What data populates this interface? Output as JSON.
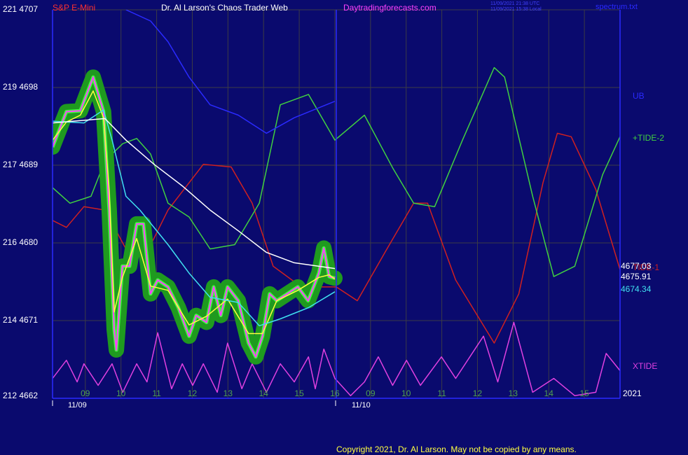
{
  "chart_data": {
    "type": "line",
    "title": "Dr. Al Larson's Chaos Trader Web",
    "instrument": "S&P E-Mini",
    "site": "Daytradingforecasts.com",
    "timestamps": [
      "11/09/2021 21:38 UTC",
      "11/09/2021 15:38 Local"
    ],
    "file": "spectrum.txt",
    "year": "2021",
    "dates": [
      "11/09",
      "11/10"
    ],
    "copyright": "Copyright 2021, Dr. Al Larson. May not be copied by any means.",
    "xlim": [
      8.08,
      24
    ],
    "ylim": [
      4662,
      4707
    ],
    "grid": true,
    "background": "#0a0a6e",
    "yticks": [
      {
        "value": 4662,
        "label": "212 4662"
      },
      {
        "value": 4671,
        "label": "214 4671"
      },
      {
        "value": 4680,
        "label": "216 4680"
      },
      {
        "value": 4689,
        "label": "217 4689"
      },
      {
        "value": 4698,
        "label": "219 4698"
      },
      {
        "value": 4707,
        "label": "221 4707"
      }
    ],
    "xticks": [
      {
        "value": 9,
        "label": "09"
      },
      10,
      11,
      12,
      13,
      14,
      15,
      16,
      {
        "value": 17,
        "label": "09"
      },
      {
        "value": 18,
        "label": "10"
      },
      {
        "value": 19,
        "label": "11"
      },
      {
        "value": 20,
        "label": "12"
      },
      {
        "value": 21,
        "label": "13"
      },
      {
        "value": 22,
        "label": "14"
      },
      {
        "value": 23,
        "label": "15"
      }
    ],
    "series": [
      {
        "color": "#ff40ff",
        "glow": "#1f9a1f",
        "label_last": true,
        "x": [
          8.08,
          8.47,
          8.86,
          9.22,
          9.51,
          9.67,
          9.81,
          9.87,
          10.04,
          10.24,
          10.44,
          10.63,
          10.83,
          11.03,
          11.32,
          11.61,
          11.91,
          12.11,
          12.4,
          12.6,
          12.8,
          12.99,
          13.29,
          13.58,
          13.78,
          13.97,
          14.17,
          14.37,
          14.66,
          14.96,
          15.25,
          15.55,
          15.69,
          15.84,
          16.0
        ],
        "values": [
          4691.1,
          4695.2,
          4695.3,
          4699.2,
          4695.2,
          4683.8,
          4670.0,
          4667.6,
          4677.3,
          4677.3,
          4682.2,
          4682.2,
          4674.1,
          4675.7,
          4674.9,
          4672.5,
          4669.2,
          4671.6,
          4670.8,
          4674.9,
          4671.6,
          4674.9,
          4673.3,
          4668.4,
          4666.8,
          4669.2,
          4674.1,
          4673.3,
          4674.1,
          4674.9,
          4673.3,
          4676.5,
          4679.4,
          4676.1,
          4675.91
        ]
      },
      {
        "color": "#ffff40",
        "x": [
          8.08,
          8.47,
          8.86,
          9.22,
          9.51,
          9.67,
          9.81,
          10.04,
          10.44,
          10.83,
          11.32,
          11.91,
          12.4,
          12.99,
          13.58,
          13.97,
          14.37,
          14.96,
          15.55,
          15.84,
          16.0
        ],
        "values": [
          4691.9,
          4694.0,
          4694.8,
          4697.6,
          4694.5,
          4686.0,
          4672.0,
          4676.0,
          4680.5,
          4675.0,
          4674.5,
          4670.5,
          4671.5,
          4673.5,
          4669.5,
          4669.5,
          4673.3,
          4674.5,
          4676.0,
          4676.3,
          4675.8
        ]
      },
      {
        "color": "#40e0f0",
        "label_last": true,
        "x": [
          8.08,
          8.96,
          9.51,
          9.75,
          10.14,
          10.53,
          11.32,
          11.91,
          12.5,
          13.29,
          13.88,
          14.47,
          15.26,
          16.0
        ],
        "values": [
          4694.1,
          4693.9,
          4695.4,
          4691.9,
          4685.4,
          4683.8,
          4679.8,
          4676.5,
          4673.7,
          4673.1,
          4670.4,
          4671.2,
          4672.5,
          4674.34
        ]
      },
      {
        "color": "#ffffff",
        "label_last": true,
        "x": [
          8.08,
          8.96,
          9.55,
          10.14,
          10.93,
          11.72,
          12.5,
          13.29,
          14.08,
          14.86,
          16.0
        ],
        "values": [
          4693.9,
          4694.2,
          4694.4,
          4691.9,
          4689.1,
          4686.6,
          4683.8,
          4681.4,
          4678.9,
          4677.7,
          4677.03
        ]
      },
      {
        "name": "UB",
        "color": "#2a2aff",
        "x": [
          10.14,
          10.83,
          11.32,
          11.91,
          12.5,
          13.29,
          14.08,
          14.86,
          16.0
        ],
        "values": [
          4707,
          4705.7,
          4703.3,
          4699.2,
          4696.0,
          4694.8,
          4692.7,
          4694.5,
          4696.4
        ]
      },
      {
        "name": "+TIDE-2",
        "color": "#40d040",
        "x": [
          8.08,
          8.57,
          9.16,
          9.55,
          10.05,
          10.44,
          10.83,
          11.32,
          11.91,
          12.5,
          13.19,
          13.88,
          14.47,
          15.26,
          16.0,
          16.83,
          17.62,
          18.21,
          18.8,
          19.58,
          20.47,
          20.76,
          21.55,
          22.14,
          22.73,
          23.51,
          24.0
        ],
        "values": [
          4686.4,
          4684.6,
          4685.4,
          4689.5,
          4691.5,
          4692.1,
          4690.3,
          4684.6,
          4683.0,
          4679.3,
          4679.8,
          4684.6,
          4696.0,
          4697.2,
          4691.9,
          4694.8,
          4688.7,
          4684.6,
          4684.2,
          4691.9,
          4700.3,
          4699.2,
          4685.4,
          4676.1,
          4677.3,
          4687.9,
          4692.3
        ]
      },
      {
        "name": "TIDE-1",
        "color": "#d02020",
        "x": [
          8.08,
          8.47,
          8.96,
          9.55,
          10.14,
          10.73,
          11.32,
          12.31,
          13.09,
          13.68,
          14.27,
          15.06,
          16.04,
          16.63,
          17.42,
          18.21,
          18.6,
          19.39,
          20.47,
          21.16,
          21.84,
          22.24,
          22.63,
          23.32,
          24.0
        ],
        "values": [
          4682.6,
          4681.8,
          4684.2,
          4683.8,
          4679.3,
          4678.9,
          4683.8,
          4689.1,
          4688.8,
          4684.6,
          4677.3,
          4674.9,
          4674.9,
          4673.3,
          4679.0,
          4684.6,
          4684.6,
          4675.7,
          4668.4,
          4674.1,
          4687.0,
          4692.7,
          4692.3,
          4686.2,
          4676.9
        ]
      },
      {
        "name": "XTIDE",
        "color": "#e040e0",
        "x": [
          8.08,
          8.47,
          8.77,
          8.96,
          9.36,
          9.75,
          10.05,
          10.44,
          10.73,
          11.03,
          11.42,
          11.72,
          12.01,
          12.31,
          12.7,
          12.99,
          13.39,
          13.68,
          14.08,
          14.47,
          14.86,
          15.26,
          15.45,
          15.69,
          16.0,
          16.44,
          16.83,
          17.22,
          17.62,
          18.01,
          18.4,
          18.99,
          19.39,
          20.17,
          20.57,
          21.02,
          21.55,
          22.14,
          22.73,
          23.32,
          23.61,
          24.0
        ],
        "values": [
          4664.3,
          4666.4,
          4663.9,
          4666.0,
          4663.5,
          4666.0,
          4662.7,
          4666.0,
          4663.9,
          4669.6,
          4663.1,
          4666.0,
          4663.5,
          4666.0,
          4662.7,
          4668.4,
          4663.1,
          4666.0,
          4662.7,
          4666.0,
          4663.9,
          4666.8,
          4663.1,
          4667.7,
          4664.3,
          4662.3,
          4663.9,
          4666.8,
          4663.5,
          4666.4,
          4663.5,
          4666.8,
          4664.3,
          4669.2,
          4663.9,
          4670.8,
          4662.7,
          4664.3,
          4662.3,
          4662.7,
          4667.2,
          4665.2
        ]
      }
    ]
  }
}
